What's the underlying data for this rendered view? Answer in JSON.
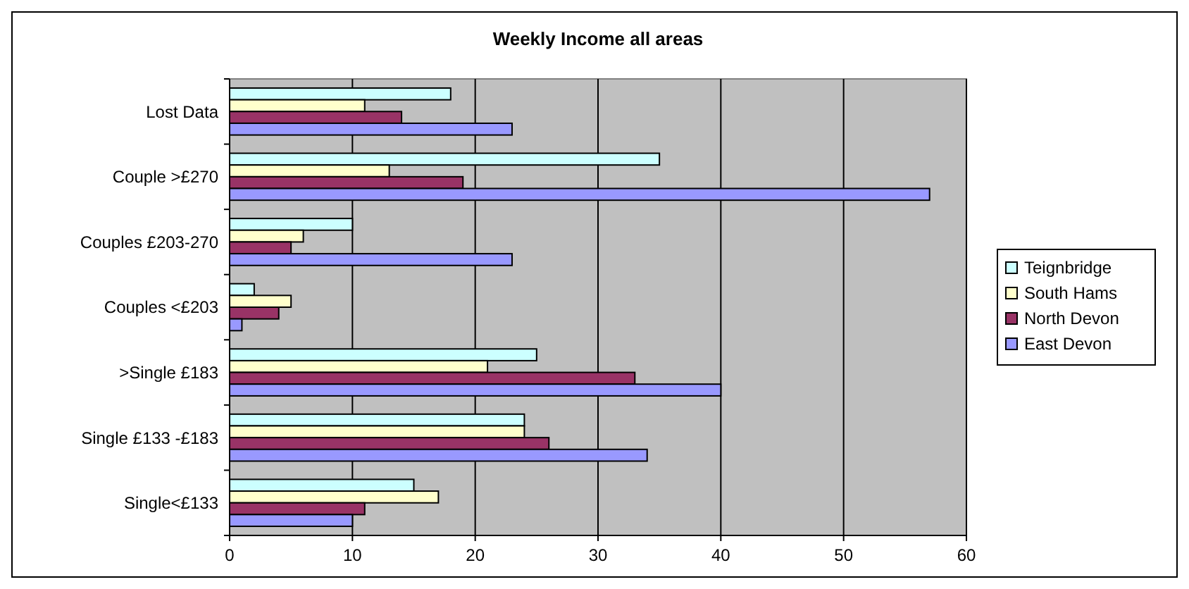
{
  "chart_data": {
    "type": "bar",
    "orientation": "horizontal",
    "title": "Weekly Income all areas",
    "categories": [
      "Lost Data",
      "Couple >£270",
      "Couples £203-270",
      "Couples <£203",
      ">Single £183",
      "Single £133 -£183",
      "Single<£133"
    ],
    "series": [
      {
        "name": "Teignbridge",
        "color": "#ccffff",
        "values": [
          18,
          35,
          10,
          2,
          25,
          24,
          15
        ]
      },
      {
        "name": "South Hams",
        "color": "#ffffcc",
        "values": [
          11,
          13,
          6,
          5,
          21,
          24,
          17
        ]
      },
      {
        "name": "North Devon",
        "color": "#993366",
        "values": [
          14,
          19,
          5,
          4,
          33,
          26,
          11
        ]
      },
      {
        "name": "East Devon",
        "color": "#9999ff",
        "values": [
          23,
          57,
          23,
          1,
          40,
          34,
          10
        ]
      }
    ],
    "xlim": [
      0,
      60
    ],
    "xticks": [
      0,
      10,
      20,
      30,
      40,
      50,
      60
    ],
    "grid": "x",
    "legend": "right"
  }
}
